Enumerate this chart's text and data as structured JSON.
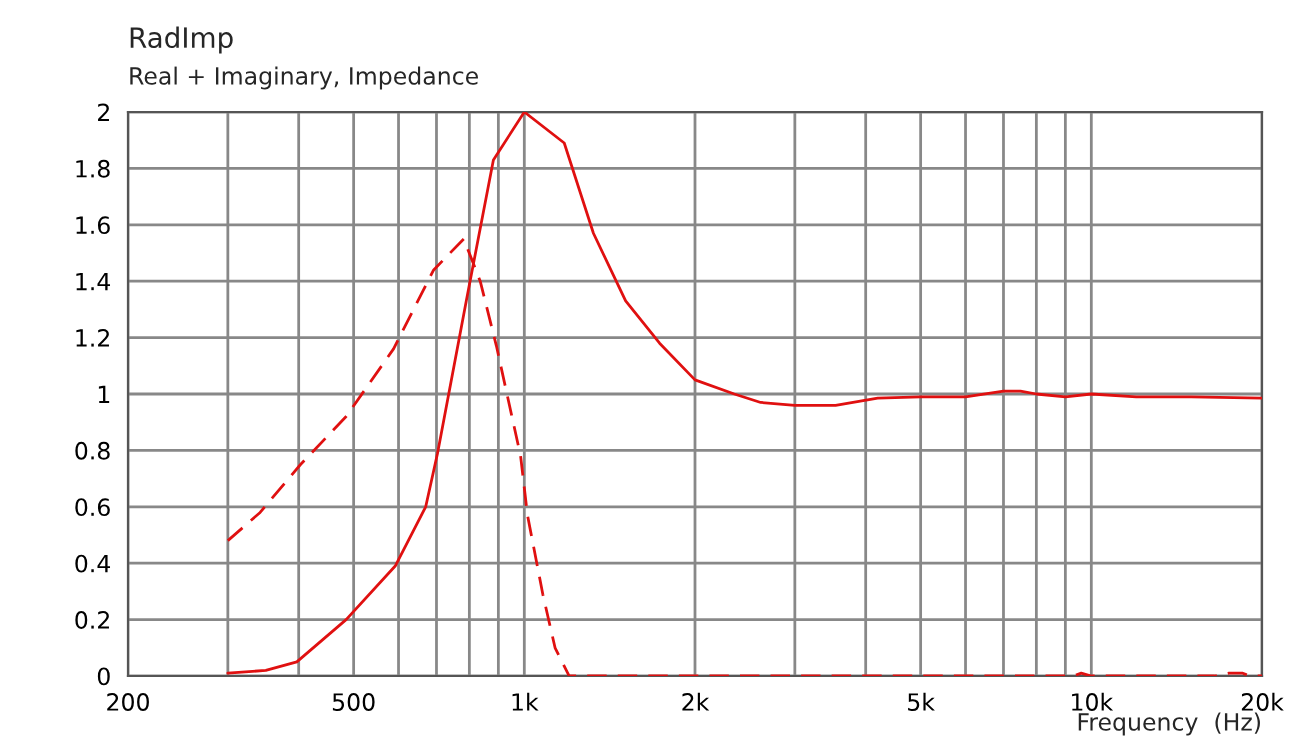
{
  "chart_data": {
    "type": "line",
    "title": "RadImp",
    "subtitle": "Real + Imaginary, Impedance",
    "xlabel": "Frequency  (Hz)",
    "log": "x",
    "grid": true,
    "legend": false,
    "xlim": [
      200,
      20000
    ],
    "xticks": [
      200,
      {
        "value": 300,
        "label": null
      },
      {
        "value": 400,
        "label": null
      },
      500,
      {
        "value": 600,
        "label": null
      },
      {
        "value": 700,
        "label": null
      },
      {
        "value": 800,
        "label": null
      },
      {
        "value": 900,
        "label": null
      },
      {
        "value": 1000,
        "label": "1k"
      },
      {
        "value": 2000,
        "label": "2k"
      },
      {
        "value": 3000,
        "label": null
      },
      {
        "value": 4000,
        "label": null
      },
      {
        "value": 5000,
        "label": "5k"
      },
      {
        "value": 6000,
        "label": null
      },
      {
        "value": 7000,
        "label": null
      },
      {
        "value": 8000,
        "label": null
      },
      {
        "value": 9000,
        "label": null
      },
      {
        "value": 10000,
        "label": "10k"
      },
      {
        "value": 20000,
        "label": "20k"
      }
    ],
    "ylim": [
      0,
      2
    ],
    "yticks": [
      0,
      0.2,
      0.4,
      0.6,
      0.8,
      1,
      1.2,
      1.4,
      1.6,
      1.8,
      2
    ],
    "series": [
      {
        "color": "#e01010",
        "line_style": "solid",
        "x": [
          300,
          350,
          397,
          485,
          592,
          670,
          703,
          790,
          882,
          1000,
          1176,
          1324,
          1509,
          1732,
          2000,
          2346,
          2612,
          3000,
          3540,
          4200,
          5000,
          6000,
          7000,
          7500,
          8000,
          9000,
          10000,
          12000,
          15000,
          20000
        ],
        "values": [
          0.01,
          0.02,
          0.05,
          0.2,
          0.39,
          0.6,
          0.79,
          1.33,
          1.83,
          2.0,
          1.89,
          1.57,
          1.33,
          1.18,
          1.05,
          1.0,
          0.97,
          0.96,
          0.96,
          0.985,
          0.99,
          0.99,
          1.01,
          1.01,
          1.0,
          0.99,
          1.0,
          0.99,
          0.99,
          0.985
        ]
      },
      {
        "color": "#e01010",
        "line_style": "dashed",
        "x": [
          300,
          342,
          403,
          485,
          588,
          692,
          782,
          836,
          893,
          985,
          1013,
          1078,
          1133,
          1200,
          2000,
          5000,
          9300,
          9600,
          10000,
          16500,
          17500,
          18500,
          19000,
          20000
        ],
        "values": [
          0.48,
          0.58,
          0.75,
          0.92,
          1.16,
          1.44,
          1.55,
          1.4,
          1.17,
          0.78,
          0.57,
          0.29,
          0.1,
          0,
          0,
          0,
          0,
          0.01,
          0,
          0,
          0.01,
          0.01,
          0,
          0
        ]
      }
    ]
  }
}
